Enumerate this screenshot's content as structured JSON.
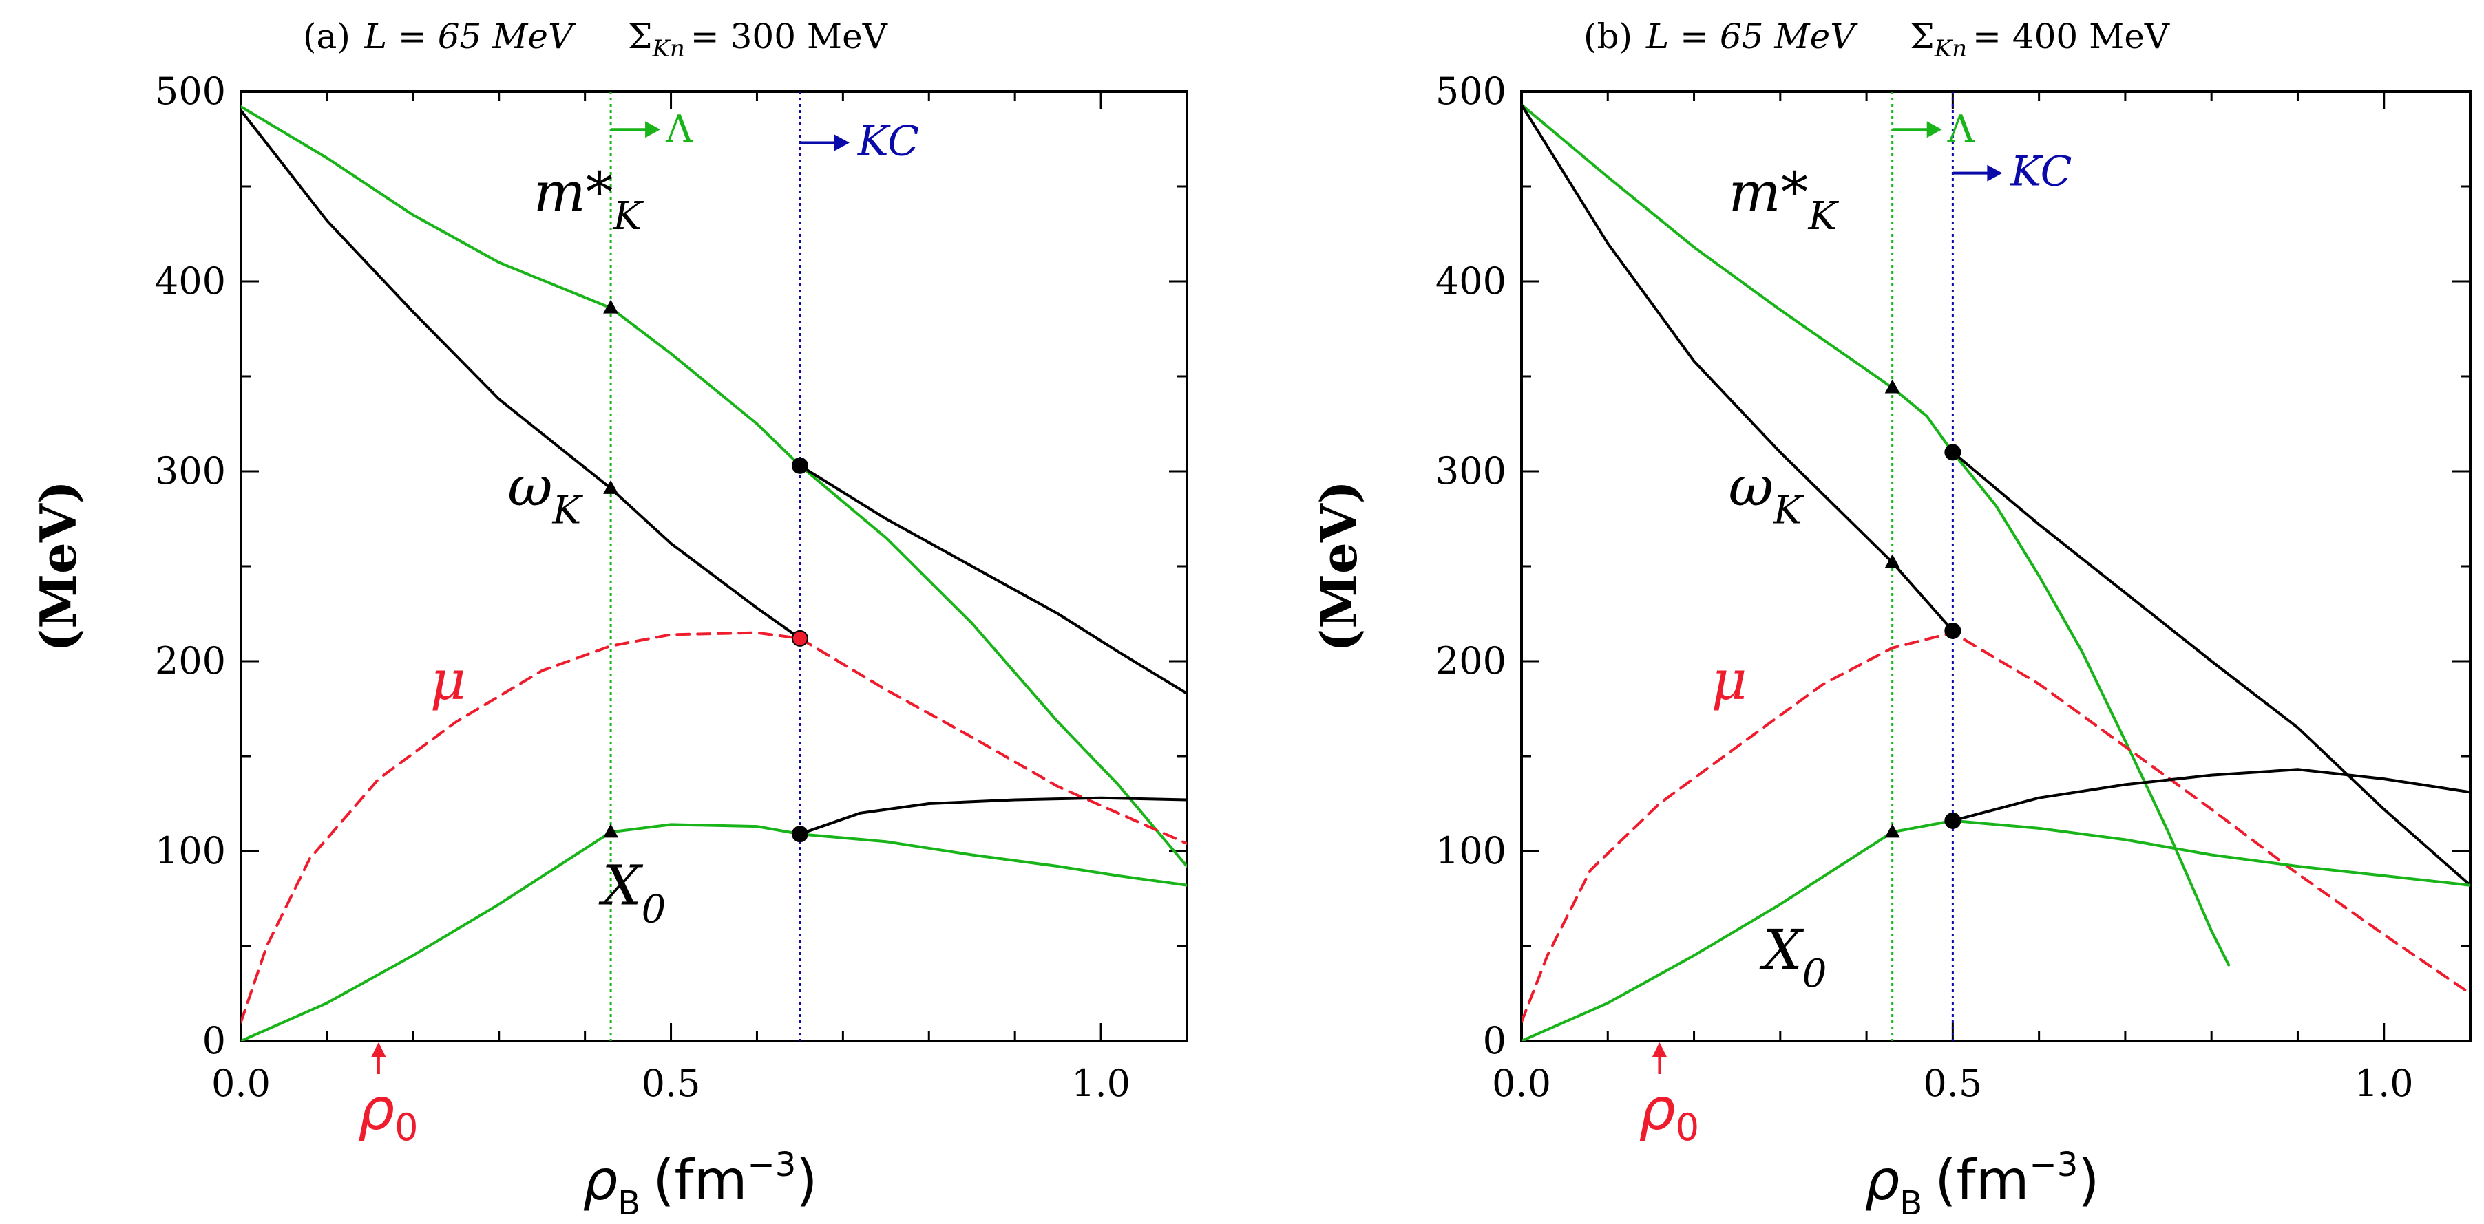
{
  "chart_data": [
    {
      "type": "line",
      "panel_label": "(a)",
      "title_L": "L = 65 MeV",
      "title_sigma": "= 300 MeV",
      "ylabel": "(MeV)",
      "xlabel": "ρ",
      "xlabel_sub": "B",
      "xlabel_unit": "(fm",
      "xlabel_exp": "−3",
      "xlabel_close": ")",
      "xlim": [
        0,
        1.1
      ],
      "ylim": [
        0,
        500
      ],
      "xticks": [
        "0.0",
        "0.5",
        "1.0"
      ],
      "xtick_values": [
        0,
        0.5,
        1.0
      ],
      "yticks": [
        "0",
        "100",
        "200",
        "300",
        "400",
        "500"
      ],
      "ytick_values": [
        0,
        100,
        200,
        300,
        400,
        500
      ],
      "colors": {
        "black": "#000000",
        "green": "#19b419",
        "red": "#ee1c2c",
        "blue": "#0a0aaa"
      },
      "lines": {
        "lambda_x": 0.43,
        "lambda_label": "Λ",
        "kc_x": 0.65,
        "kc_label": "KC",
        "rho0_x": 0.16,
        "rho0_label": "ρ",
        "rho0_sub": "0"
      },
      "curve_labels": [
        {
          "key": "mK",
          "text": "m*",
          "sub": "K",
          "x": 0.34,
          "y": 437,
          "color": "black"
        },
        {
          "key": "wK",
          "text": "ω",
          "sub": "K",
          "x": 0.31,
          "y": 282,
          "color": "black"
        },
        {
          "key": "mu",
          "text": "μ",
          "sub": "",
          "x": 0.22,
          "y": 180,
          "color": "red"
        },
        {
          "key": "X0",
          "text": "X",
          "sub": "0",
          "x": 0.42,
          "y": 72,
          "color": "black"
        }
      ],
      "series": [
        {
          "key": "mK_green",
          "color": "green",
          "dash": false,
          "points": [
            [
              0,
              492
            ],
            [
              0.1,
              465
            ],
            [
              0.2,
              435
            ],
            [
              0.3,
              410
            ],
            [
              0.43,
              386
            ],
            [
              0.5,
              362
            ],
            [
              0.6,
              325
            ],
            [
              0.65,
              303
            ],
            [
              0.75,
              265
            ],
            [
              0.85,
              220
            ],
            [
              0.95,
              168
            ],
            [
              1.02,
              135
            ],
            [
              1.1,
              92
            ]
          ]
        },
        {
          "key": "wK_black",
          "color": "black",
          "dash": false,
          "points": [
            [
              0,
              490
            ],
            [
              0.1,
              432
            ],
            [
              0.2,
              384
            ],
            [
              0.3,
              338
            ],
            [
              0.43,
              291
            ],
            [
              0.5,
              262
            ],
            [
              0.6,
              228
            ],
            [
              0.65,
              212
            ]
          ]
        },
        {
          "key": "wK_black_kc",
          "color": "black",
          "dash": false,
          "points": [
            [
              0.65,
              303
            ],
            [
              0.75,
              275
            ],
            [
              0.85,
              250
            ],
            [
              0.95,
              225
            ],
            [
              1.02,
              205
            ],
            [
              1.1,
              183
            ]
          ]
        },
        {
          "key": "mu_red",
          "color": "red",
          "dash": true,
          "points": [
            [
              0,
              10
            ],
            [
              0.03,
              50
            ],
            [
              0.08,
              96
            ],
            [
              0.16,
              138
            ],
            [
              0.25,
              168
            ],
            [
              0.35,
              195
            ],
            [
              0.43,
              208
            ],
            [
              0.5,
              214
            ],
            [
              0.6,
              215
            ],
            [
              0.65,
              212
            ],
            [
              0.75,
              185
            ],
            [
              0.85,
              160
            ],
            [
              0.95,
              134
            ],
            [
              1.02,
              120
            ],
            [
              1.1,
              104
            ]
          ]
        },
        {
          "key": "X0_green",
          "color": "green",
          "dash": false,
          "points": [
            [
              0,
              0
            ],
            [
              0.1,
              20
            ],
            [
              0.2,
              45
            ],
            [
              0.3,
              72
            ],
            [
              0.43,
              110
            ],
            [
              0.5,
              114
            ],
            [
              0.6,
              113
            ],
            [
              0.65,
              109
            ],
            [
              0.75,
              105
            ],
            [
              0.85,
              98
            ],
            [
              0.95,
              92
            ],
            [
              1.02,
              87
            ],
            [
              1.1,
              82
            ]
          ]
        },
        {
          "key": "X0_black",
          "color": "black",
          "dash": false,
          "points": [
            [
              0.65,
              109
            ],
            [
              0.72,
              120
            ],
            [
              0.8,
              125
            ],
            [
              0.9,
              127
            ],
            [
              1.0,
              128
            ],
            [
              1.1,
              127
            ]
          ]
        }
      ],
      "markers": [
        {
          "x": 0.43,
          "y": 386,
          "shape": "triangle",
          "color": "black"
        },
        {
          "x": 0.43,
          "y": 291,
          "shape": "triangle",
          "color": "black"
        },
        {
          "x": 0.43,
          "y": 110,
          "shape": "triangle",
          "color": "black"
        },
        {
          "x": 0.65,
          "y": 303,
          "shape": "circle",
          "color": "black"
        },
        {
          "x": 0.65,
          "y": 212,
          "shape": "circle",
          "color": "red"
        },
        {
          "x": 0.65,
          "y": 109,
          "shape": "circle",
          "color": "black"
        }
      ]
    },
    {
      "type": "line",
      "panel_label": "(b)",
      "title_L": "L = 65 MeV",
      "title_sigma": "= 400 MeV",
      "ylabel": "(MeV)",
      "xlabel": "ρ",
      "xlabel_sub": "B",
      "xlabel_unit": "(fm",
      "xlabel_exp": "−3",
      "xlabel_close": ")",
      "xlim": [
        0,
        1.1
      ],
      "ylim": [
        0,
        500
      ],
      "xticks": [
        "0.0",
        "0.5",
        "1.0"
      ],
      "xtick_values": [
        0,
        0.5,
        1.0
      ],
      "yticks": [
        "0",
        "100",
        "200",
        "300",
        "400",
        "500"
      ],
      "ytick_values": [
        0,
        100,
        200,
        300,
        400,
        500
      ],
      "colors": {
        "black": "#000000",
        "green": "#19b419",
        "red": "#ee1c2c",
        "blue": "#0a0aaa"
      },
      "lines": {
        "lambda_x": 0.43,
        "lambda_label": "Λ",
        "kc_x": 0.5,
        "kc_label": "KC",
        "rho0_x": 0.16,
        "rho0_label": "ρ",
        "rho0_sub": "0"
      },
      "curve_labels": [
        {
          "key": "mK",
          "text": "m*",
          "sub": "K",
          "x": 0.24,
          "y": 437,
          "color": "black"
        },
        {
          "key": "wK",
          "text": "ω",
          "sub": "K",
          "x": 0.24,
          "y": 282,
          "color": "black"
        },
        {
          "key": "mu",
          "text": "μ",
          "sub": "",
          "x": 0.22,
          "y": 180,
          "color": "red"
        },
        {
          "key": "X0",
          "text": "X",
          "sub": "0",
          "x": 0.28,
          "y": 38,
          "color": "black"
        }
      ],
      "series": [
        {
          "key": "mK_green",
          "color": "green",
          "dash": false,
          "points": [
            [
              0,
              493
            ],
            [
              0.1,
              455
            ],
            [
              0.2,
              418
            ],
            [
              0.3,
              385
            ],
            [
              0.43,
              344
            ],
            [
              0.47,
              329
            ],
            [
              0.5,
              310
            ],
            [
              0.55,
              282
            ],
            [
              0.6,
              245
            ],
            [
              0.65,
              205
            ],
            [
              0.7,
              158
            ],
            [
              0.75,
              110
            ],
            [
              0.8,
              58
            ],
            [
              0.82,
              40
            ]
          ]
        },
        {
          "key": "wK_black",
          "color": "black",
          "dash": false,
          "points": [
            [
              0,
              493
            ],
            [
              0.1,
              420
            ],
            [
              0.2,
              358
            ],
            [
              0.3,
              310
            ],
            [
              0.43,
              252
            ],
            [
              0.5,
              216
            ]
          ]
        },
        {
          "key": "wK_black_kc",
          "color": "black",
          "dash": false,
          "points": [
            [
              0.5,
              310
            ],
            [
              0.6,
              272
            ],
            [
              0.7,
              236
            ],
            [
              0.8,
              200
            ],
            [
              0.9,
              165
            ],
            [
              1.0,
              122
            ],
            [
              1.1,
              82
            ]
          ]
        },
        {
          "key": "mu_red",
          "color": "red",
          "dash": true,
          "points": [
            [
              0,
              10
            ],
            [
              0.03,
              45
            ],
            [
              0.08,
              90
            ],
            [
              0.16,
              125
            ],
            [
              0.25,
              155
            ],
            [
              0.35,
              188
            ],
            [
              0.43,
              207
            ],
            [
              0.5,
              215
            ],
            [
              0.6,
              188
            ],
            [
              0.7,
              155
            ],
            [
              0.8,
              122
            ],
            [
              0.9,
              88
            ],
            [
              1.0,
              56
            ],
            [
              1.1,
              25
            ]
          ]
        },
        {
          "key": "X0_green",
          "color": "green",
          "dash": false,
          "points": [
            [
              0,
              0
            ],
            [
              0.1,
              20
            ],
            [
              0.2,
              45
            ],
            [
              0.3,
              72
            ],
            [
              0.43,
              110
            ],
            [
              0.5,
              116
            ],
            [
              0.6,
              112
            ],
            [
              0.7,
              106
            ],
            [
              0.8,
              98
            ],
            [
              0.9,
              92
            ],
            [
              1.0,
              87
            ],
            [
              1.1,
              82
            ]
          ]
        },
        {
          "key": "X0_black",
          "color": "black",
          "dash": false,
          "points": [
            [
              0.5,
              116
            ],
            [
              0.6,
              128
            ],
            [
              0.7,
              135
            ],
            [
              0.8,
              140
            ],
            [
              0.9,
              143
            ],
            [
              1.0,
              138
            ],
            [
              1.1,
              131
            ]
          ]
        }
      ],
      "markers": [
        {
          "x": 0.43,
          "y": 344,
          "shape": "triangle",
          "color": "black"
        },
        {
          "x": 0.43,
          "y": 252,
          "shape": "triangle",
          "color": "black"
        },
        {
          "x": 0.43,
          "y": 110,
          "shape": "triangle",
          "color": "black"
        },
        {
          "x": 0.5,
          "y": 310,
          "shape": "circle",
          "color": "black"
        },
        {
          "x": 0.5,
          "y": 216,
          "shape": "circle",
          "color": "black"
        },
        {
          "x": 0.5,
          "y": 116,
          "shape": "circle",
          "color": "black"
        }
      ]
    }
  ]
}
